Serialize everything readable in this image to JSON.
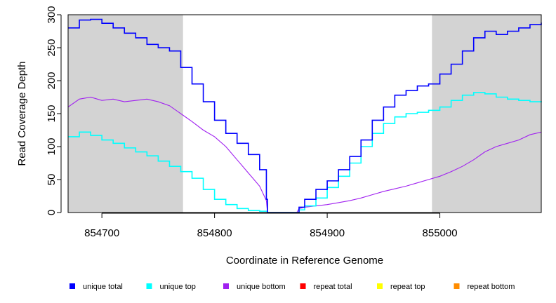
{
  "chart_data": {
    "type": "line",
    "xlabel": "Coordinate in Reference Genome",
    "ylabel": "Read Coverage Depth",
    "xlim": [
      854670,
      855090
    ],
    "ylim": [
      0,
      300
    ],
    "x_ticks": [
      854700,
      854800,
      854900,
      855000
    ],
    "x_tick_labels": [
      "854700",
      "854800",
      "854900",
      "855000"
    ],
    "y_ticks": [
      0,
      50,
      100,
      150,
      200,
      250,
      300
    ],
    "y_tick_labels": [
      "0",
      "50",
      "100",
      "150",
      "200",
      "250",
      "300"
    ],
    "shaded_regions": [
      [
        854670,
        854772
      ],
      [
        854993,
        855090
      ]
    ],
    "shade_color": "#d3d3d3",
    "legend_position": "bottom",
    "series": [
      {
        "name": "unique total",
        "color": "#0000ff",
        "step": true,
        "x": [
          854670,
          854680,
          854690,
          854700,
          854710,
          854720,
          854730,
          854740,
          854750,
          854760,
          854770,
          854780,
          854790,
          854800,
          854810,
          854820,
          854830,
          854840,
          854846,
          854847,
          854873,
          854875,
          854880,
          854890,
          854900,
          854910,
          854920,
          854930,
          854940,
          854950,
          854960,
          854970,
          854980,
          854990,
          855000,
          855010,
          855020,
          855030,
          855040,
          855050,
          855060,
          855070,
          855080,
          855090
        ],
        "y": [
          280,
          292,
          293,
          287,
          280,
          272,
          265,
          255,
          250,
          245,
          220,
          195,
          168,
          140,
          120,
          105,
          88,
          65,
          20,
          0,
          0,
          8,
          20,
          35,
          48,
          65,
          85,
          110,
          140,
          160,
          178,
          185,
          192,
          195,
          210,
          225,
          245,
          265,
          275,
          270,
          275,
          280,
          285,
          288
        ]
      },
      {
        "name": "unique top",
        "color": "#00ffff",
        "step": true,
        "x": [
          854670,
          854680,
          854690,
          854700,
          854710,
          854720,
          854730,
          854740,
          854750,
          854760,
          854770,
          854780,
          854790,
          854800,
          854810,
          854820,
          854830,
          854840,
          854846,
          854847,
          854873,
          854875,
          854880,
          854890,
          854900,
          854910,
          854920,
          854930,
          854940,
          854950,
          854960,
          854970,
          854980,
          854990,
          855000,
          855010,
          855020,
          855030,
          855040,
          855050,
          855060,
          855070,
          855080,
          855090
        ],
        "y": [
          115,
          122,
          117,
          110,
          105,
          98,
          92,
          86,
          78,
          70,
          62,
          52,
          35,
          20,
          12,
          6,
          3,
          2,
          2,
          0,
          0,
          4,
          10,
          22,
          38,
          55,
          75,
          100,
          120,
          135,
          145,
          150,
          152,
          155,
          160,
          170,
          178,
          182,
          180,
          175,
          172,
          170,
          168,
          167
        ]
      },
      {
        "name": "unique bottom",
        "color": "#a020f0",
        "step": false,
        "x": [
          854670,
          854680,
          854690,
          854700,
          854710,
          854720,
          854730,
          854740,
          854750,
          854760,
          854770,
          854780,
          854790,
          854800,
          854810,
          854820,
          854830,
          854840,
          854846,
          854847,
          854873,
          854875,
          854880,
          854890,
          854900,
          854910,
          854920,
          854930,
          854940,
          854950,
          854960,
          854970,
          854980,
          854990,
          855000,
          855010,
          855020,
          855030,
          855040,
          855050,
          855060,
          855070,
          855080,
          855090
        ],
        "y": [
          160,
          172,
          175,
          170,
          172,
          168,
          170,
          172,
          168,
          162,
          150,
          138,
          125,
          115,
          100,
          80,
          60,
          40,
          18,
          0,
          0,
          6,
          8,
          10,
          12,
          15,
          18,
          22,
          27,
          32,
          36,
          40,
          45,
          50,
          55,
          62,
          70,
          80,
          92,
          100,
          105,
          110,
          118,
          122
        ]
      },
      {
        "name": "repeat total",
        "color": "#ff0000",
        "step": false,
        "x": [
          854670,
          855090
        ],
        "y": [
          0,
          0
        ]
      },
      {
        "name": "repeat top",
        "color": "#ffff00",
        "step": false,
        "x": [
          854670,
          855090
        ],
        "y": [
          0,
          0
        ]
      },
      {
        "name": "repeat bottom",
        "color": "#ff8c00",
        "step": false,
        "x": [
          854670,
          855090
        ],
        "y": [
          0,
          0
        ]
      }
    ]
  }
}
